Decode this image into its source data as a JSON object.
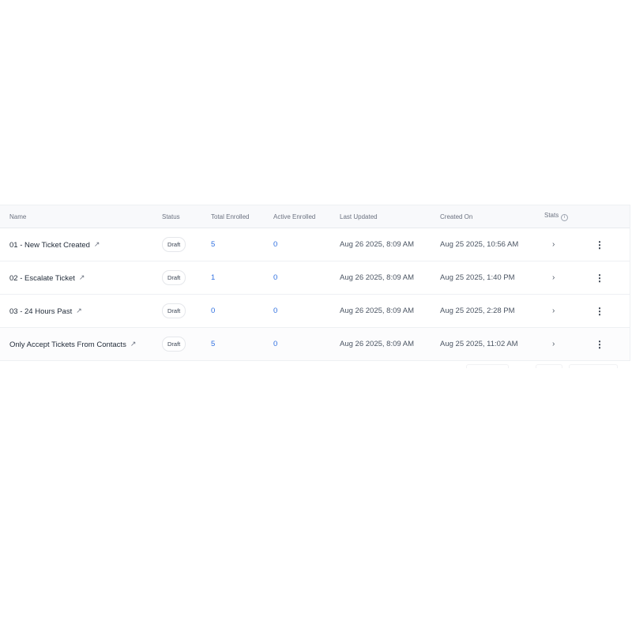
{
  "table": {
    "headers": [
      "Name",
      "Status",
      "Total Enrolled",
      "Active Enrolled",
      "Last Updated",
      "Created On",
      "Stats"
    ],
    "rows": [
      {
        "name": "01 - New Ticket Created",
        "status": "Draft",
        "total": "5",
        "active": "0",
        "updated": "Aug 26 2025, 8:09 AM",
        "created": "Aug 25 2025, 10:56 AM"
      },
      {
        "name": "02 - Escalate Ticket",
        "status": "Draft",
        "total": "1",
        "active": "0",
        "updated": "Aug 26 2025, 8:09 AM",
        "created": "Aug 25 2025, 1:40 PM"
      },
      {
        "name": "03 - 24 Hours Past",
        "status": "Draft",
        "total": "0",
        "active": "0",
        "updated": "Aug 26 2025, 8:09 AM",
        "created": "Aug 25 2025, 2:28 PM"
      },
      {
        "name": "Only Accept Tickets From Contacts",
        "status": "Draft",
        "total": "5",
        "active": "0",
        "updated": "Aug 26 2025, 8:09 AM",
        "created": "Aug 25 2025, 11:02 AM"
      }
    ]
  },
  "icons": {
    "external": "external-link-icon",
    "info": "info-icon",
    "chevron": "chevron-right-icon",
    "more": "kebab-menu-icon"
  },
  "colors": {
    "link_number": "#2f6fe0",
    "header_bg": "#f8f9fb"
  }
}
